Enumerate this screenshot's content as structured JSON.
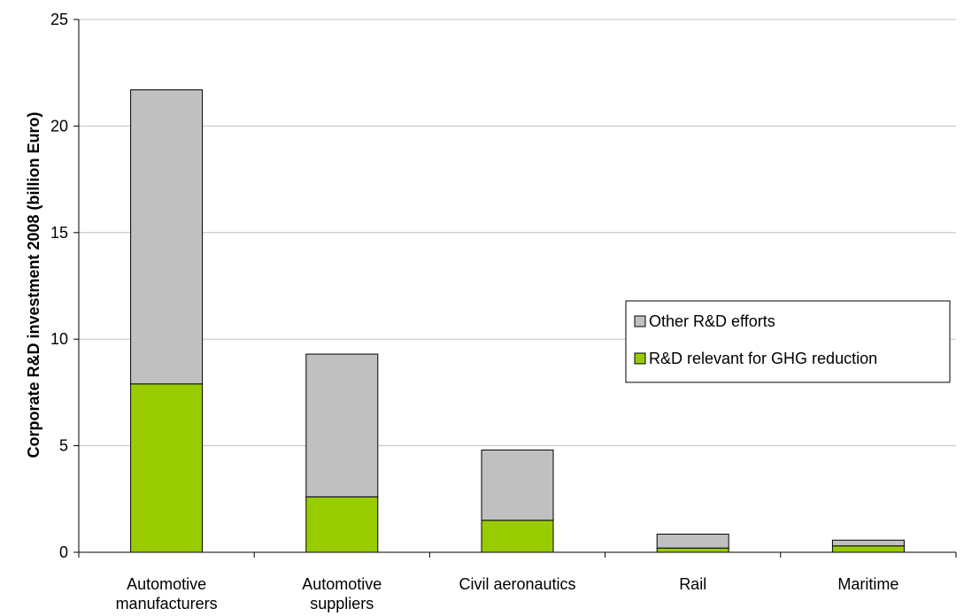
{
  "chart_data": {
    "type": "bar",
    "stacked": true,
    "ylabel": "Corporate R&D investment 2008 (billion Euro)",
    "xlabel": "",
    "ylim": [
      0,
      25
    ],
    "yticks": [
      0,
      5,
      10,
      15,
      20,
      25
    ],
    "grid": true,
    "legend_position": "right",
    "categories": [
      [
        "Automotive",
        "manufacturers"
      ],
      [
        "Automotive",
        "suppliers"
      ],
      [
        "Civil aeronautics"
      ],
      [
        "Rail"
      ],
      [
        "Maritime"
      ]
    ],
    "series": [
      {
        "name": "R&D relevant for GHG reduction",
        "color": "#99cc00",
        "values": [
          7.9,
          2.6,
          1.5,
          0.2,
          0.3
        ]
      },
      {
        "name": "Other R&D efforts",
        "color": "#c0c0c0",
        "values": [
          13.8,
          6.7,
          3.3,
          0.65,
          0.27
        ]
      }
    ]
  }
}
